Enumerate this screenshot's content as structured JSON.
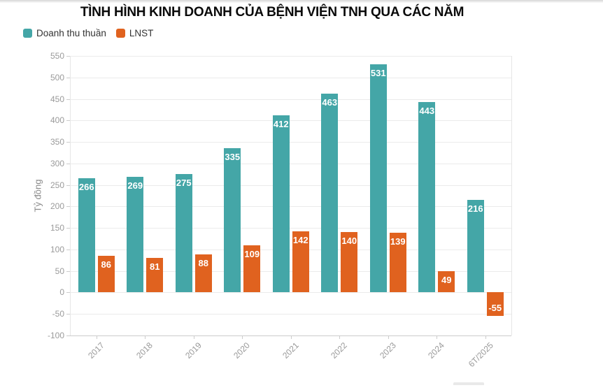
{
  "title": "TÌNH HÌNH KINH DOANH CỦA BỆNH VIỆN TNH QUA CÁC NĂM",
  "legend": [
    {
      "label": "Doanh thu thuần",
      "color": "#44a6a7",
      "swatch_icon": "teal-square-icon"
    },
    {
      "label": "LNST",
      "color": "#e0621f",
      "swatch_icon": "orange-square-icon"
    }
  ],
  "colors": {
    "series_revenue": "#44a6a7",
    "series_profit": "#e0621f",
    "gridline": "#ebebeb",
    "axis_line": "#cccccc",
    "tick_label": "#9a9a9a",
    "value_label": "#ffffff"
  },
  "chart_data": {
    "type": "bar",
    "title": "TÌNH HÌNH KINH DOANH CỦA BỆNH VIỆN TNH QUA CÁC NĂM",
    "ylabel": "Tỷ đồng",
    "xlabel": "",
    "categories": [
      "2017",
      "2018",
      "2019",
      "2020",
      "2021",
      "2022",
      "2023",
      "2024",
      "6T/2025"
    ],
    "series": [
      {
        "name": "Doanh thu thuần",
        "color": "#44a6a7",
        "values": [
          266,
          269,
          275,
          335,
          412,
          463,
          531,
          443,
          216
        ]
      },
      {
        "name": "LNST",
        "color": "#e0621f",
        "values": [
          86,
          81,
          88,
          109,
          142,
          140,
          139,
          49,
          -55
        ]
      }
    ],
    "ylim": [
      -100,
      550
    ],
    "ytick_step": 50,
    "ytick_labels": [
      "550",
      "500",
      "450",
      "400",
      "350",
      "300",
      "250",
      "200",
      "150",
      "100",
      "50",
      "0",
      "-50",
      "-100"
    ],
    "grid": true,
    "legend_position": "top-left"
  }
}
